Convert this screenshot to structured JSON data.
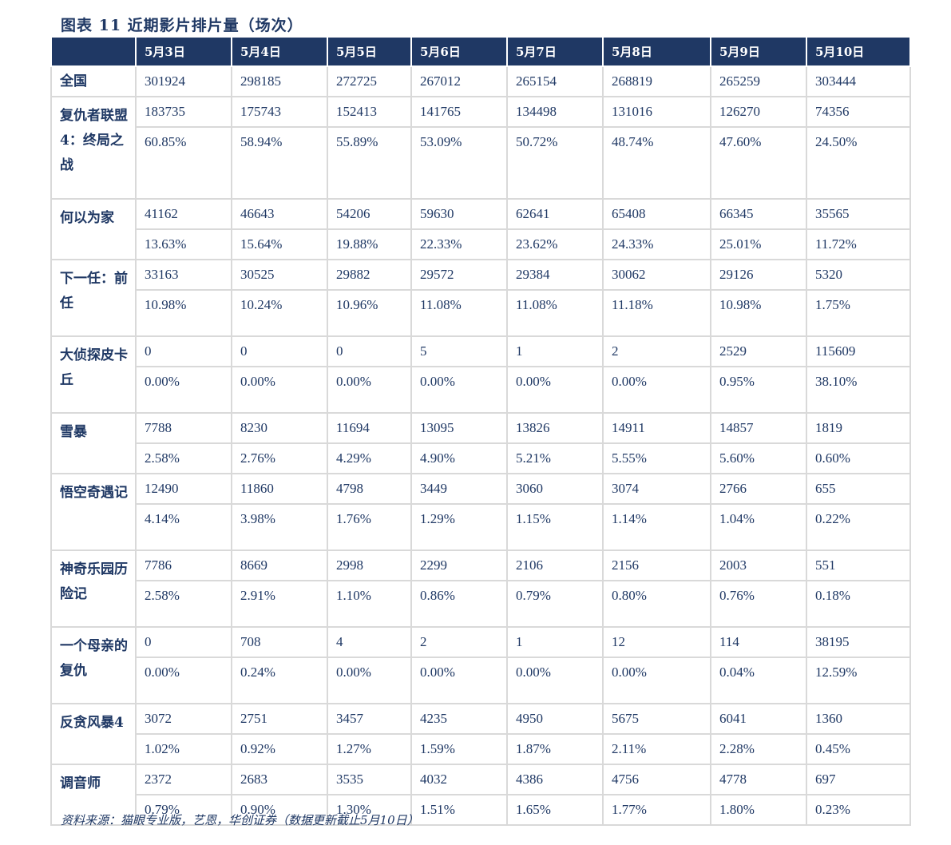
{
  "title": "图表 11 近期影片排片量（场次）",
  "headers": [
    "",
    "5月3日",
    "5月4日",
    "5月5日",
    "5月6日",
    "5月7日",
    "5月8日",
    "5月9日",
    "5月10日"
  ],
  "total": {
    "name": "全国",
    "values": [
      "301924",
      "298185",
      "272725",
      "267012",
      "265154",
      "268819",
      "265259",
      "303444"
    ]
  },
  "movies": [
    {
      "name": "复仇者联盟4：终局之战",
      "counts": [
        "183735",
        "175743",
        "152413",
        "141765",
        "134498",
        "131016",
        "126270",
        "74356"
      ],
      "shares": [
        "60.85%",
        "58.94%",
        "55.89%",
        "53.09%",
        "50.72%",
        "48.74%",
        "47.60%",
        "24.50%"
      ]
    },
    {
      "name": "何以为家",
      "counts": [
        "41162",
        "46643",
        "54206",
        "59630",
        "62641",
        "65408",
        "66345",
        "35565"
      ],
      "shares": [
        "13.63%",
        "15.64%",
        "19.88%",
        "22.33%",
        "23.62%",
        "24.33%",
        "25.01%",
        "11.72%"
      ]
    },
    {
      "name": "下一任：前任",
      "counts": [
        "33163",
        "30525",
        "29882",
        "29572",
        "29384",
        "30062",
        "29126",
        "5320"
      ],
      "shares": [
        "10.98%",
        "10.24%",
        "10.96%",
        "11.08%",
        "11.08%",
        "11.18%",
        "10.98%",
        "1.75%"
      ]
    },
    {
      "name": "大侦探皮卡丘",
      "counts": [
        "0",
        "0",
        "0",
        "5",
        "1",
        "2",
        "2529",
        "115609"
      ],
      "shares": [
        "0.00%",
        "0.00%",
        "0.00%",
        "0.00%",
        "0.00%",
        "0.00%",
        "0.95%",
        "38.10%"
      ]
    },
    {
      "name": "雪暴",
      "counts": [
        "7788",
        "8230",
        "11694",
        "13095",
        "13826",
        "14911",
        "14857",
        "1819"
      ],
      "shares": [
        "2.58%",
        "2.76%",
        "4.29%",
        "4.90%",
        "5.21%",
        "5.55%",
        "5.60%",
        "0.60%"
      ]
    },
    {
      "name": "悟空奇遇记",
      "counts": [
        "12490",
        "11860",
        "4798",
        "3449",
        "3060",
        "3074",
        "2766",
        "655"
      ],
      "shares": [
        "4.14%",
        "3.98%",
        "1.76%",
        "1.29%",
        "1.15%",
        "1.14%",
        "1.04%",
        "0.22%"
      ]
    },
    {
      "name": "神奇乐园历险记",
      "counts": [
        "7786",
        "8669",
        "2998",
        "2299",
        "2106",
        "2156",
        "2003",
        "551"
      ],
      "shares": [
        "2.58%",
        "2.91%",
        "1.10%",
        "0.86%",
        "0.79%",
        "0.80%",
        "0.76%",
        "0.18%"
      ]
    },
    {
      "name": "一个母亲的复仇",
      "counts": [
        "0",
        "708",
        "4",
        "2",
        "1",
        "12",
        "114",
        "38195"
      ],
      "shares": [
        "0.00%",
        "0.24%",
        "0.00%",
        "0.00%",
        "0.00%",
        "0.00%",
        "0.04%",
        "12.59%"
      ]
    },
    {
      "name": "反贪风暴4",
      "counts": [
        "3072",
        "2751",
        "3457",
        "4235",
        "4950",
        "5675",
        "6041",
        "1360"
      ],
      "shares": [
        "1.02%",
        "0.92%",
        "1.27%",
        "1.59%",
        "1.87%",
        "2.11%",
        "2.28%",
        "0.45%"
      ]
    },
    {
      "name": "调音师",
      "counts": [
        "2372",
        "2683",
        "3535",
        "4032",
        "4386",
        "4756",
        "4778",
        "697"
      ],
      "shares": [
        "0.79%",
        "0.90%",
        "1.30%",
        "1.51%",
        "1.65%",
        "1.77%",
        "1.80%",
        "0.23%"
      ]
    }
  ],
  "source": "资料来源：猫眼专业版，艺恩，华创证券（数据更新截止5月10日）",
  "colors": {
    "header_bg": "#1f3864",
    "header_text": "#ffffff",
    "body_text": "#1f3864",
    "grid": "#d9d9d9"
  }
}
